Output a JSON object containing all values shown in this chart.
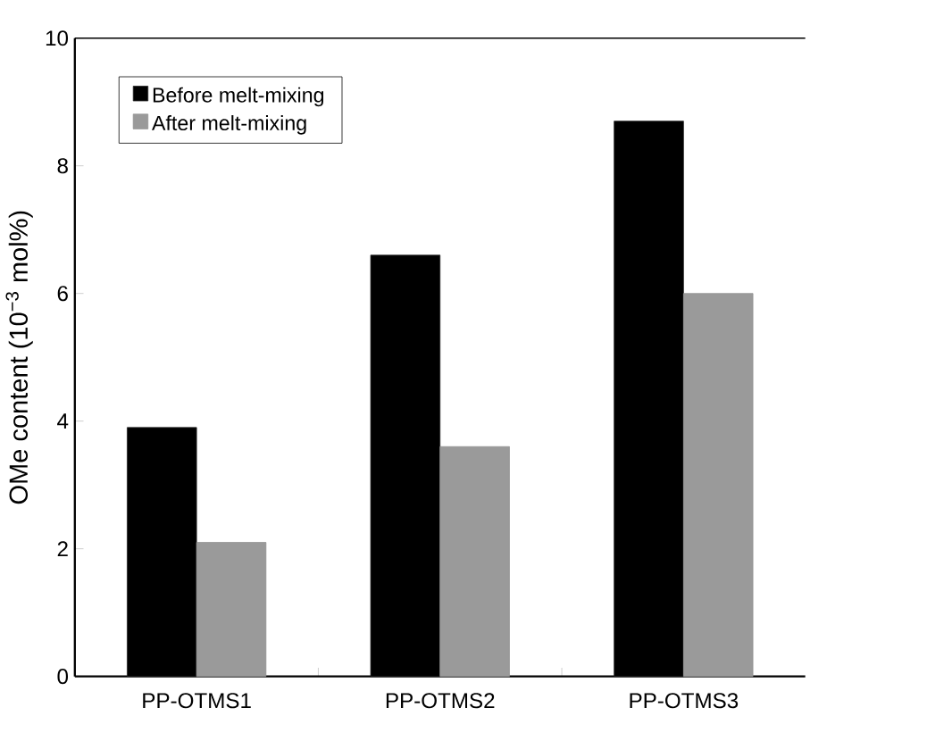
{
  "chart_data": {
    "type": "bar",
    "ylabel": "OMe content (10$^{−3}$ mol%)",
    "categories": [
      "PP-OTMS1",
      "PP-OTMS2",
      "PP-OTMS3"
    ],
    "series": [
      {
        "name": "Before melt-mixing",
        "color": "#000000",
        "values": [
          3.9,
          6.6,
          8.7
        ]
      },
      {
        "name": "After melt-mixing",
        "color": "#9a9a9a",
        "values": [
          2.1,
          3.6,
          6.0
        ]
      }
    ],
    "ylim": [
      0,
      10
    ],
    "yticks": [
      0,
      2,
      4,
      6,
      8,
      10
    ],
    "legend": "top left",
    "grid": false
  }
}
